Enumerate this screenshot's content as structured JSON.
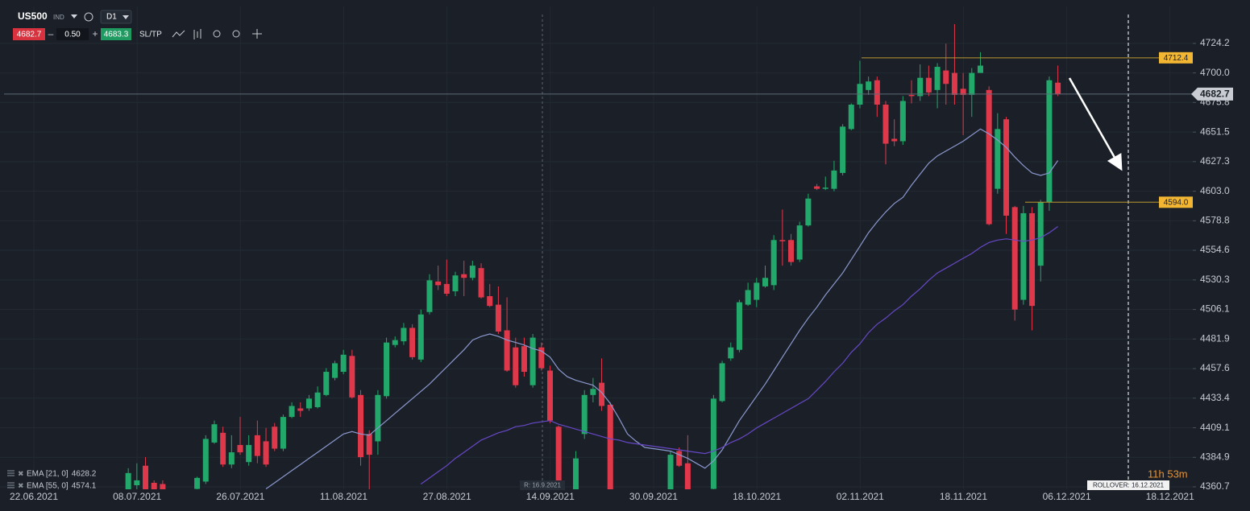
{
  "toolbar": {
    "symbol": "US500",
    "market": "IND",
    "timeframe": "D1",
    "sell": "4682.7",
    "volume": "0.50",
    "buy": "4683.3",
    "sltp": "SL/TP"
  },
  "chart_data": {
    "type": "candlestick",
    "categories": [
      "22.06.2021",
      null,
      null,
      null,
      null,
      null,
      null,
      null,
      null,
      null,
      null,
      null,
      "08.07.2021",
      null,
      null,
      null,
      null,
      null,
      null,
      null,
      null,
      null,
      null,
      null,
      "26.07.2021",
      null,
      null,
      null,
      null,
      null,
      null,
      null,
      null,
      null,
      null,
      null,
      "11.08.2021",
      null,
      null,
      null,
      null,
      null,
      null,
      null,
      null,
      null,
      null,
      null,
      "27.08.2021",
      null,
      null,
      null,
      null,
      null,
      null,
      null,
      null,
      null,
      null,
      null,
      "14.09.2021",
      null,
      null,
      null,
      null,
      null,
      null,
      null,
      null,
      null,
      null,
      null,
      "30.09.2021",
      null,
      null,
      null,
      null,
      null,
      null,
      null,
      null,
      null,
      null,
      null,
      "18.10.2021",
      null,
      null,
      null,
      null,
      null,
      null,
      null,
      null,
      null,
      null,
      null,
      "02.11.2021",
      null,
      null,
      null,
      null,
      null,
      null,
      null,
      null,
      null,
      null,
      null,
      "18.11.2021",
      null,
      null,
      null,
      null,
      null,
      null,
      null,
      null,
      null,
      null,
      null,
      "06.12.2021",
      null,
      null,
      null,
      null,
      null,
      null,
      null,
      null,
      null,
      null,
      null,
      "18.12.2021"
    ],
    "open": [
      null,
      null,
      null,
      null,
      null,
      null,
      null,
      null,
      null,
      null,
      null,
      null,
      4352,
      4362,
      4378,
      4364,
      4363,
      null,
      null,
      null,
      4359,
      4365,
      4397,
      4405,
      4379,
      4395,
      4381,
      4403,
      4398,
      4410,
      4392,
      4418,
      4425,
      4425,
      4426,
      4436,
      4450,
      4455,
      4468,
      4436,
      4404,
      4398,
      4435,
      4477,
      4480,
      4491,
      4465,
      4504,
      4529,
      4527,
      4521,
      4535,
      4532,
      4540,
      4517,
      4510,
      4489,
      4475,
      4476,
      4444,
      4475,
      4456,
      4410,
      null,
      4357,
      4404,
      4436,
      4446,
      4428,
      null,
      null,
      null,
      null,
      null,
      null,
      4357,
      4390,
      4380,
      null,
      null,
      4359,
      4431,
      4466,
      4473,
      4510,
      4514,
      4525,
      4526,
      4563,
      4563,
      4547,
      4575,
      4607,
      4605,
      4605,
      4618,
      4654,
      4674,
      4686,
      4694,
      4674,
      4646,
      4644,
      4682,
      4681,
      4696,
      4686,
      4702,
      4700,
      4687,
      4682,
      4700,
      4686,
      4605,
      4662,
      4590,
      4514,
      4585,
      4542,
      4594,
      4692,
      null,
      null,
      null,
      null,
      null,
      null,
      null,
      null,
      null,
      null,
      null,
      null
    ],
    "high": [
      null,
      null,
      null,
      null,
      null,
      null,
      null,
      null,
      null,
      null,
      null,
      null,
      4376,
      4380,
      4385,
      4366,
      4366,
      null,
      null,
      null,
      4369,
      4403,
      4415,
      4410,
      4403,
      4418,
      4403,
      4415,
      4409,
      4413,
      4420,
      4430,
      4430,
      4436,
      4443,
      4458,
      4464,
      4473,
      4473,
      4440,
      4407,
      4440,
      4483,
      4484,
      4495,
      4494,
      4506,
      4535,
      4542,
      4547,
      4537,
      4546,
      4546,
      4544,
      4527,
      4525,
      4516,
      4483,
      4483,
      4486,
      4479,
      4460,
      4411,
      null,
      4390,
      4440,
      4450,
      4466,
      4430,
      null,
      null,
      null,
      null,
      null,
      null,
      4390,
      4393,
      4403,
      null,
      null,
      4436,
      4464,
      4479,
      4514,
      4528,
      4532,
      4542,
      4567,
      4588,
      4568,
      4578,
      4601,
      4609,
      4615,
      4628,
      4658,
      4675,
      4710,
      4697,
      4697,
      4677,
      4662,
      4681,
      4694,
      4707,
      4706,
      4708,
      4724,
      4740,
      4700,
      4704,
      4717,
      4689,
      4667,
      4664,
      4591,
      4591,
      4590,
      4596,
      4697,
      4706,
      null,
      null,
      null,
      null,
      null,
      null,
      null,
      null,
      null,
      null,
      null,
      null
    ],
    "low": [
      null,
      null,
      null,
      null,
      null,
      null,
      null,
      null,
      null,
      null,
      null,
      null,
      4345,
      4350,
      4350,
      4350,
      4350,
      null,
      null,
      null,
      4357,
      4363,
      4396,
      4377,
      4376,
      4387,
      4378,
      4380,
      4377,
      4390,
      4390,
      4417,
      4418,
      4423,
      4425,
      4435,
      4448,
      4453,
      4433,
      4378,
      4357,
      4387,
      4433,
      4475,
      4477,
      4465,
      4463,
      4502,
      4522,
      4517,
      4517,
      4517,
      4530,
      4515,
      4508,
      4486,
      4455,
      4442,
      4451,
      4442,
      4456,
      4413,
      4354,
      null,
      4356,
      4400,
      4430,
      4423,
      4356,
      null,
      null,
      null,
      null,
      null,
      null,
      4356,
      4377,
      4356,
      null,
      null,
      4356,
      4430,
      4464,
      4471,
      4509,
      4508,
      4524,
      4522,
      4542,
      4542,
      4545,
      4574,
      4604,
      4604,
      4603,
      4616,
      4653,
      4671,
      4682,
      4664,
      4625,
      4640,
      4641,
      4675,
      4677,
      4681,
      4671,
      4674,
      4674,
      4649,
      4664,
      4700,
      4575,
      4601,
      4568,
      4497,
      4510,
      4489,
      4529,
      4587,
      4681,
      null,
      null,
      null,
      null,
      null,
      null,
      null,
      null,
      null,
      null,
      null,
      null
    ],
    "close": [
      null,
      null,
      null,
      null,
      null,
      null,
      null,
      null,
      null,
      null,
      null,
      null,
      4372,
      4366,
      4355,
      4358,
      4355,
      null,
      null,
      null,
      4368,
      4400,
      4412,
      4379,
      4389,
      4389,
      4395,
      4386,
      4379,
      4392,
      4418,
      4427,
      4423,
      4433,
      4438,
      4455,
      4462,
      4469,
      4434,
      4385,
      4387,
      4436,
      4479,
      4481,
      4491,
      4467,
      4502,
      4530,
      4526,
      4519,
      4534,
      4532,
      4542,
      4516,
      4509,
      4488,
      4456,
      4444,
      4455,
      4483,
      4458,
      4415,
      4356,
      null,
      4384,
      4436,
      4441,
      4427,
      4356,
      null,
      null,
      null,
      null,
      null,
      null,
      4387,
      4378,
      4357,
      null,
      null,
      4433,
      4462,
      4475,
      4512,
      4522,
      4528,
      4532,
      4563,
      4562,
      4545,
      4575,
      4597,
      4605,
      4606,
      4620,
      4656,
      4674,
      4691,
      4693,
      4674,
      4642,
      4644,
      4677,
      4681,
      4696,
      4684,
      4705,
      4691,
      4682,
      4682,
      4700,
      4706,
      4576,
      4654,
      4583,
      4506,
      4585,
      4509,
      4594,
      4694,
      4682.7,
      null,
      null,
      null,
      null,
      null,
      null,
      null,
      null,
      null,
      null,
      null,
      null
    ],
    "up_color": "#22a86a",
    "down_color": "#e0384b",
    "indicators": [
      {
        "name": "EMA [21, 0]",
        "color": "#8b98cf",
        "values": [
          null,
          null,
          null,
          null,
          null,
          null,
          null,
          null,
          null,
          null,
          null,
          null,
          null,
          null,
          null,
          null,
          null,
          null,
          null,
          null,
          null,
          null,
          null,
          null,
          null,
          null,
          null,
          null,
          4359,
          4364,
          4369,
          4374,
          4379,
          4384,
          4389,
          4394,
          4399,
          4404,
          4406,
          4404,
          4403,
          4409,
          4415,
          4421,
          4427,
          4433,
          4439,
          4445,
          4452,
          4459,
          4466,
          4473,
          4481,
          4484,
          4486,
          4484,
          4481,
          4479,
          4477,
          4474,
          4472,
          4467,
          4457,
          4451,
          4448,
          4446,
          4444,
          4438,
          4429,
          4417,
          4404,
          4398,
          4393,
          4392,
          4391,
          4390,
          4387,
          4384,
          4380,
          4376,
          4382,
          4391,
          4403,
          4415,
          4425,
          4435,
          4445,
          4456,
          4467,
          4478,
          4489,
          4499,
          4508,
          4518,
          4527,
          4536,
          4547,
          4558,
          4569,
          4578,
          4586,
          4593,
          4598,
          4608,
          4617,
          4626,
          4632,
          4636,
          4640,
          4644,
          4649,
          4654,
          4650,
          4645,
          4639,
          4631,
          4624,
          4618,
          4616,
          4618,
          4628.2,
          null,
          null,
          null,
          null,
          null,
          null,
          null,
          null,
          null,
          null,
          null,
          null
        ]
      },
      {
        "name": "EMA [55, 0]",
        "color": "#6747c7",
        "values": [
          null,
          null,
          null,
          null,
          null,
          null,
          null,
          null,
          null,
          null,
          null,
          null,
          null,
          null,
          null,
          null,
          null,
          null,
          null,
          null,
          null,
          null,
          null,
          null,
          null,
          null,
          null,
          null,
          null,
          null,
          null,
          null,
          null,
          null,
          null,
          null,
          null,
          null,
          null,
          null,
          null,
          null,
          null,
          null,
          null,
          null,
          4363,
          4368,
          4373,
          4378,
          4384,
          4389,
          4394,
          4399,
          4402,
          4405,
          4407,
          4410,
          4411,
          4413,
          4414,
          4415,
          4412,
          4410,
          4408,
          4406,
          4404,
          4402,
          4400,
          4399,
          4397,
          4396,
          4395,
          4394,
          4393,
          4392,
          4391,
          4390,
          4389,
          4388,
          4390,
          4393,
          4397,
          4400,
          4404,
          4409,
          4413,
          4417,
          4421,
          4425,
          4429,
          4433,
          4440,
          4447,
          4455,
          4462,
          4471,
          4478,
          4487,
          4494,
          4499,
          4505,
          4510,
          4517,
          4523,
          4530,
          4536,
          4540,
          4544,
          4548,
          4552,
          4557,
          4561,
          4563,
          4564,
          4563,
          4562,
          4563,
          4565,
          4569,
          4574.1,
          null,
          null,
          null,
          null,
          null,
          null,
          null,
          null,
          null,
          null,
          null,
          null
        ]
      }
    ],
    "ylim": [
      4358.7,
      4754.5
    ],
    "yticks": [
      4724.2,
      {
        "value": 4700,
        "label": "4700.0"
      },
      4675.8,
      4651.5,
      4627.3,
      {
        "value": 4603,
        "label": "4603.0"
      },
      4578.8,
      4554.6,
      4530.3,
      4506.1,
      4481.9,
      4457.6,
      4433.4,
      4409.1,
      4384.9,
      4360.7
    ],
    "grid": true,
    "price_line": 4682.7,
    "levels": [
      4712.4,
      {
        "value": 4594,
        "label": "4594.0"
      }
    ],
    "cursor_label": "R: 16.9.2021",
    "rollover": "ROLLOVER: 16.12.2021",
    "countdown": "11h 53m"
  }
}
